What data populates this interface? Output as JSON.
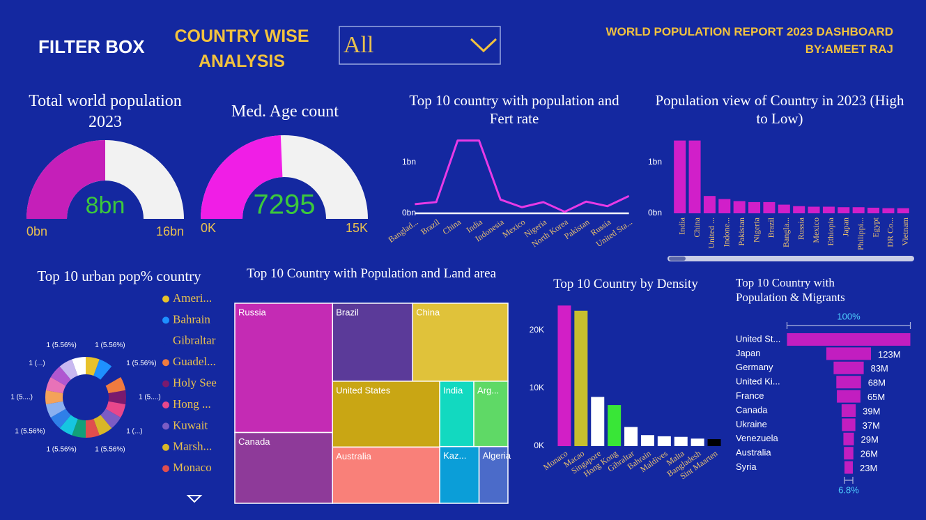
{
  "header": {
    "filter_title": "FILTER BOX",
    "section_title": "COUNTRY WISE ANALYSIS",
    "dropdown_value": "All",
    "report_title": "WORLD POPULATION REPORT 2023 DASHBOARD",
    "author": "BY:AMEET RAJ"
  },
  "chart_data": [
    {
      "type": "gauge",
      "title": "Total world population 2023",
      "values": [
        8
      ],
      "value_labels": [
        "8bn"
      ],
      "ylim": [
        0,
        16
      ],
      "yticks": [
        {
          "value": 0,
          "label": "0bn"
        },
        {
          "value": 16,
          "label": "16bn"
        }
      ],
      "color": "#c51fb9",
      "track_color": "#f2f2f2"
    },
    {
      "type": "gauge",
      "title": "Med. Age count",
      "values": [
        7295
      ],
      "ylim": [
        0,
        15000
      ],
      "yticks": [
        {
          "value": 0,
          "label": "0K"
        },
        {
          "value": 15000,
          "label": "15K"
        }
      ],
      "color": "#f01ee6",
      "track_color": "#f2f2f2"
    },
    {
      "type": "line",
      "title": "Top 10 country with population and Fert rate",
      "categories": [
        "Banglad...",
        "Brazil",
        "China",
        "India",
        "Indonesia",
        "Mexico",
        "Nigeria",
        "North Korea",
        "Pakistan",
        "Russia",
        "United Sta..."
      ],
      "values": [
        0.18,
        0.22,
        1.43,
        1.43,
        0.27,
        0.12,
        0.22,
        0.03,
        0.23,
        0.14,
        0.34
      ],
      "ylim": [
        0,
        1.5
      ],
      "yticks": [
        {
          "value": 0,
          "label": "0bn"
        },
        {
          "value": 1,
          "label": "1bn"
        }
      ],
      "color": "#e83ae6"
    },
    {
      "type": "bar",
      "title": "Population view of Country in 2023 (High to Low)",
      "categories": [
        "India",
        "China",
        "United ...",
        "Indone...",
        "Pakistan",
        "Nigeria",
        "Brazil",
        "Bangla...",
        "Russia",
        "Mexico",
        "Ethiopia",
        "Japan",
        "Philippi...",
        "Egypt",
        "DR Co...",
        "Vietnam"
      ],
      "values": [
        1.43,
        1.43,
        0.34,
        0.28,
        0.24,
        0.22,
        0.22,
        0.17,
        0.14,
        0.13,
        0.13,
        0.12,
        0.12,
        0.11,
        0.1,
        0.1
      ],
      "ylim": [
        0,
        1.5
      ],
      "yticks": [
        {
          "value": 0,
          "label": "0bn"
        },
        {
          "value": 1,
          "label": "1bn"
        }
      ],
      "color": "#d11fc9"
    },
    {
      "type": "donut",
      "title": "Top 10 urban pop% country",
      "categories": [
        "Ameri...",
        "Bahrain",
        "Gibraltar",
        "Guadel...",
        "Holy See",
        "Hong ...",
        "Kuwait",
        "Marsh...",
        "Monaco",
        null,
        null,
        null,
        null,
        null,
        null,
        null,
        null,
        null
      ],
      "values": [
        1,
        1,
        1,
        1,
        1,
        1,
        1,
        1,
        1,
        1,
        1,
        1,
        1,
        1,
        1,
        1,
        1,
        1
      ],
      "value_labels": [
        "1 (5.56%)",
        null,
        "1 (5.56%)",
        null,
        "1 (5....)",
        null,
        "1 (...)",
        null,
        "1 (5.56%)",
        "1 (5.56%)",
        null,
        "1 (5.56%)",
        null,
        "1 (5....)",
        null,
        "1 (...)",
        null,
        "1 (5.56%)"
      ],
      "colors": [
        "#e8c22a",
        "#1e90ff",
        "#1428a0",
        "#f07b3f",
        "#7a1a6e",
        "#e8478b",
        "#7c5cc4",
        "#d8b628",
        "#e04e4e",
        "#12a07a",
        "#16c6e0",
        "#2f7fe8",
        "#8ab0f0",
        "#f4a25a",
        "#e872b8",
        "#b057d0",
        "#c8b8f0",
        "#ffffff"
      ]
    },
    {
      "type": "treemap",
      "title": "Top 10 Country with Population and Land area",
      "categories": [
        "Russia",
        "Canada",
        "Brazil",
        "China",
        "United States",
        "Australia",
        "India",
        "Arg...",
        "Kaz...",
        "Algeria"
      ],
      "values": [
        17,
        9.3,
        8.4,
        10,
        9.5,
        8.1,
        3,
        3,
        3,
        2.2
      ],
      "colors": [
        "#c42bb4",
        "#8e3a99",
        "#5b3a99",
        "#e0c23a",
        "#c9a614",
        "#f98079",
        "#12d9c0",
        "#5fd966",
        "#0b9ed8",
        "#4b6bc9"
      ]
    },
    {
      "type": "bar",
      "title": "Top 10 Country by Density",
      "categories": [
        "Monaco",
        "Macao",
        "Singapore",
        "Hong Kong",
        "Gibraltar",
        "Bahrain",
        "Maldives",
        "Malta",
        "Bangladesh",
        "Sint Maarten"
      ],
      "values": [
        24300,
        23400,
        8500,
        7100,
        3300,
        1900,
        1700,
        1600,
        1300,
        1200
      ],
      "ylim": [
        0,
        25000
      ],
      "yticks": [
        {
          "value": 0,
          "label": "0K"
        },
        {
          "value": 10000,
          "label": "10K"
        },
        {
          "value": 20000,
          "label": "20K"
        }
      ],
      "colors": [
        "#d21fc6",
        "#c7bf2e",
        "#ffffff",
        "#39e637",
        "#ffffff",
        "#ffffff",
        "#ffffff",
        "#ffffff",
        "#ffffff",
        "#000000"
      ]
    },
    {
      "type": "funnel",
      "title": "Top 10 Country with Population & Migrants",
      "categories": [
        "United St...",
        "Japan",
        "Germany",
        "United Ki...",
        "France",
        "Canada",
        "Ukraine",
        "Venezuela",
        "Australia",
        "Syria"
      ],
      "values": [
        340,
        123,
        83,
        68,
        65,
        39,
        37,
        29,
        26,
        23
      ],
      "value_labels": [
        null,
        "123M",
        "83M",
        "68M",
        "65M",
        "39M",
        "37M",
        "29M",
        "26M",
        "23M"
      ],
      "top_label": "100%",
      "bottom_label": "6.8%",
      "color": "#c21ec0"
    }
  ]
}
